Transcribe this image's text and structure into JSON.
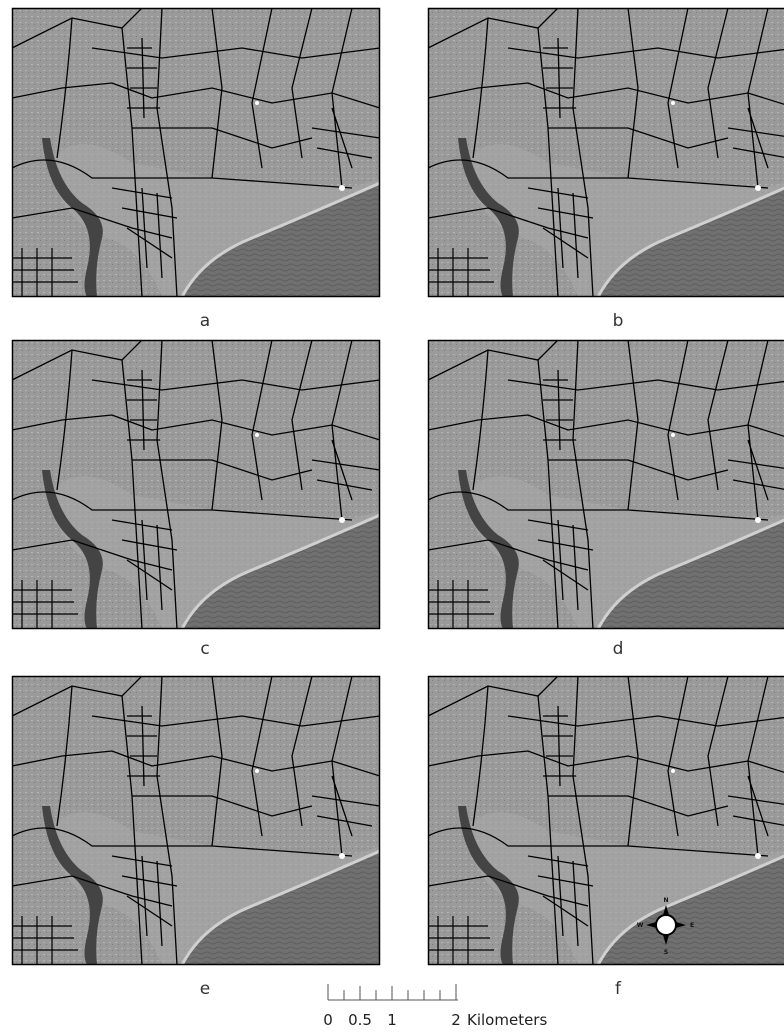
{
  "panels": [
    {
      "label": "a"
    },
    {
      "label": "b"
    },
    {
      "label": "c"
    },
    {
      "label": "d"
    },
    {
      "label": "e"
    },
    {
      "label": "f"
    }
  ],
  "scale_bar": {
    "ticks": [
      "0",
      "0.5",
      "1",
      "2"
    ],
    "unit": "Kilometers"
  },
  "compass": {
    "n": "N",
    "e": "E",
    "s": "S",
    "w": "W"
  }
}
